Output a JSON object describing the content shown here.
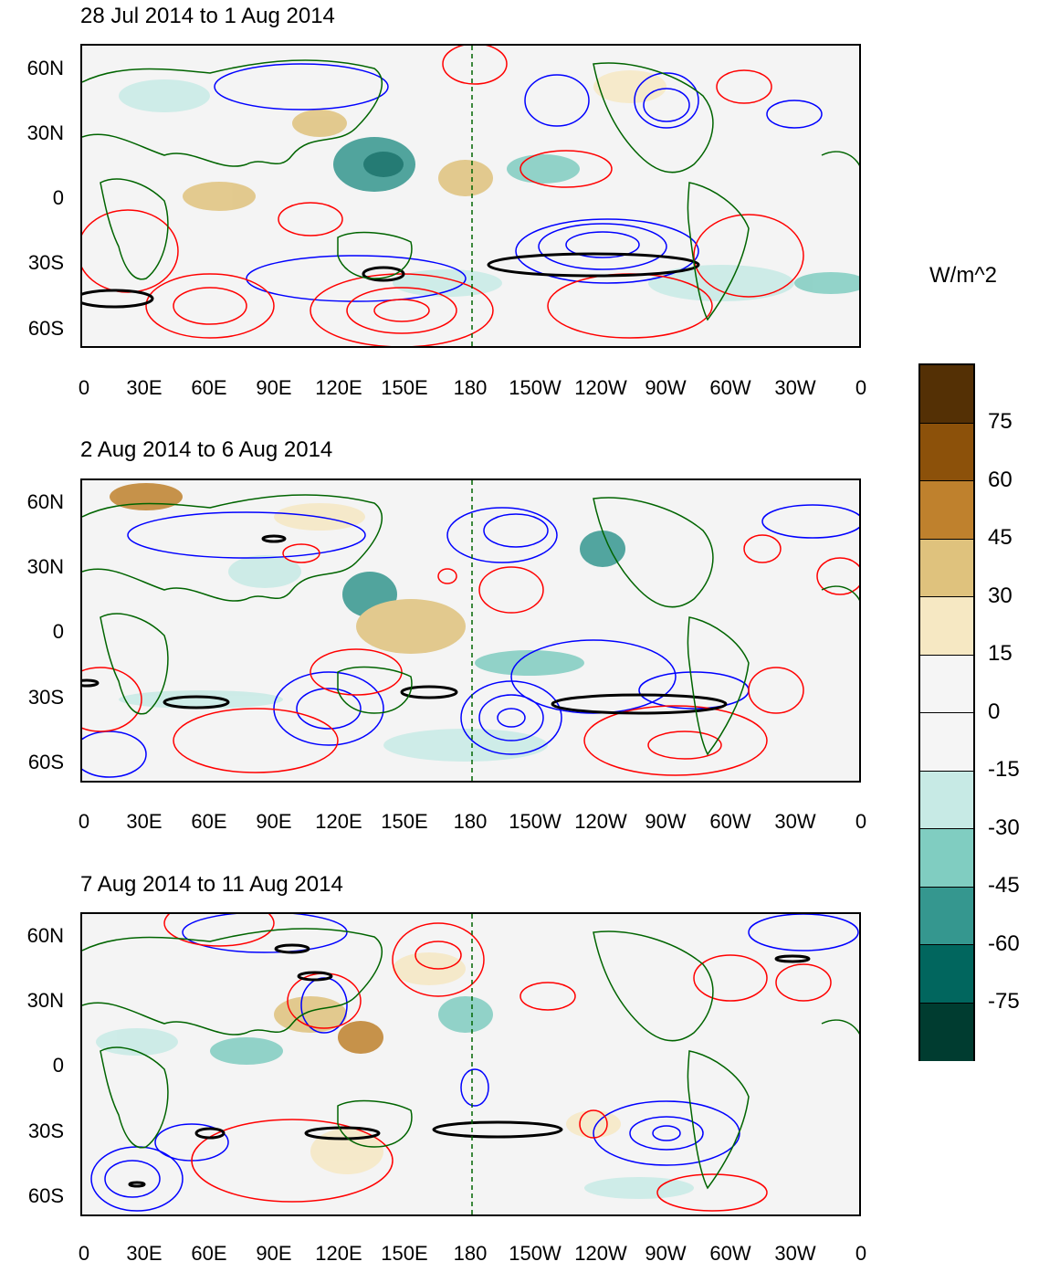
{
  "panels": [
    {
      "title": "28 Jul 2014 to 1 Aug 2014"
    },
    {
      "title": "2 Aug 2014 to 6 Aug 2014"
    },
    {
      "title": "7 Aug 2014 to 11 Aug 2014"
    }
  ],
  "lat_labels": [
    "60N",
    "30N",
    "0",
    "30S",
    "60S"
  ],
  "lon_labels": [
    "0",
    "30E",
    "60E",
    "90E",
    "120E",
    "150E",
    "180",
    "150W",
    "120W",
    "90W",
    "60W",
    "30W",
    "0"
  ],
  "colorbar": {
    "units": "W/m^2",
    "labels": [
      "75",
      "60",
      "45",
      "30",
      "15",
      "0",
      "-15",
      "-30",
      "-45",
      "-60",
      "-75"
    ],
    "colors": [
      "#543005",
      "#8c510a",
      "#bf812d",
      "#dfc27d",
      "#f6e8c3",
      "#f5f5f5",
      "#f5f5f5",
      "#c7eae5",
      "#80cdc1",
      "#35978f",
      "#01665e",
      "#003c30"
    ]
  },
  "contour_colors": {
    "positive": "#ff0000",
    "negative": "#0000ff",
    "significance": "#000000",
    "coastline": "#006400"
  }
}
